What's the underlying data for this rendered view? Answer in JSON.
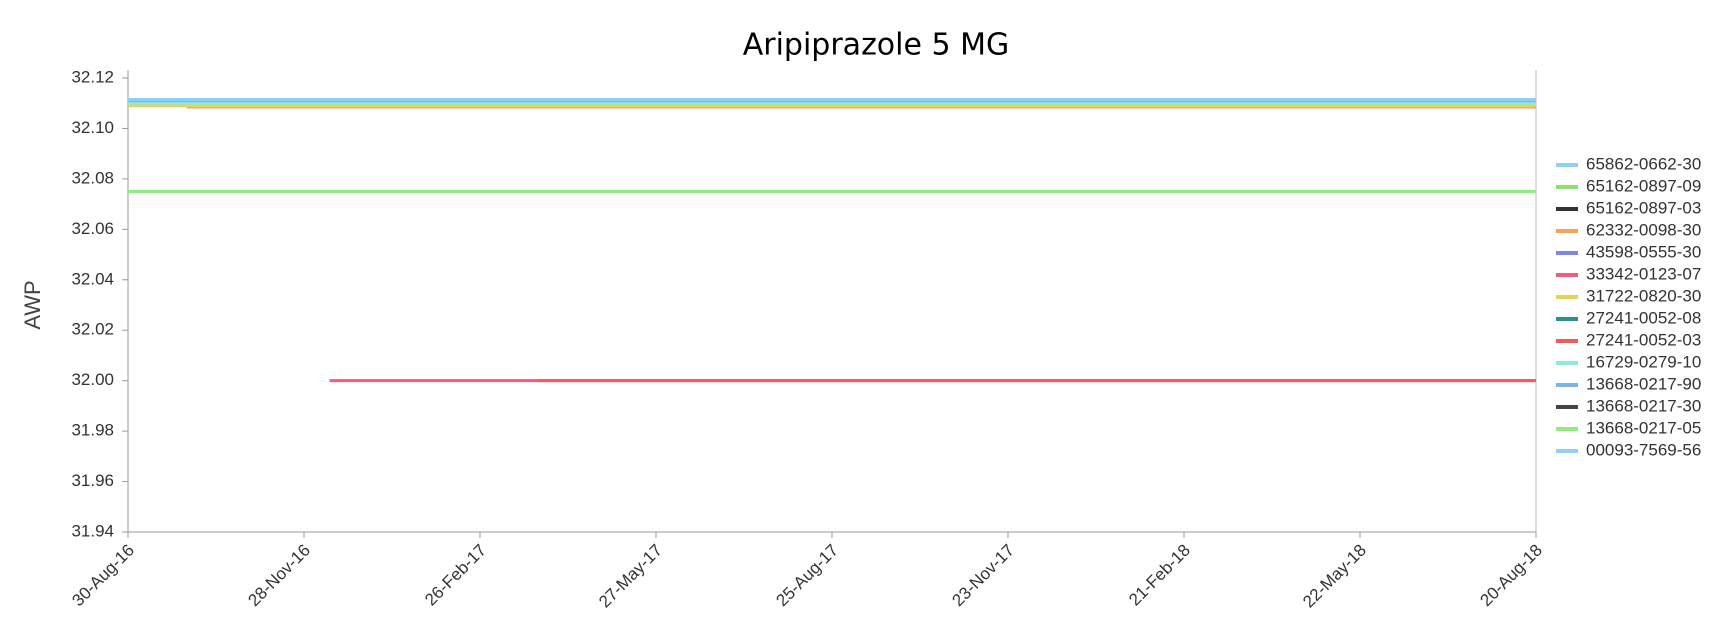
{
  "chart_data": {
    "type": "line",
    "title": "Aripiprazole 5 MG",
    "y_label": "AWP",
    "xlim": [
      "30-Aug-16",
      "20-Aug-18"
    ],
    "xticks": [
      "30-Aug-16",
      "28-Nov-16",
      "26-Feb-17",
      "27-May-17",
      "25-Aug-17",
      "23-Nov-17",
      "21-Feb-18",
      "22-May-18",
      "20-Aug-18"
    ],
    "ylim": [
      31.94,
      32.12
    ],
    "yticks": [
      {
        "value": 31.94,
        "label": "31.94"
      },
      31.96,
      31.98,
      {
        "value": 32,
        "label": "32.00"
      },
      32.02,
      32.04,
      32.06,
      32.08,
      {
        "value": 32.1,
        "label": "32.10"
      },
      32.12
    ],
    "legend": "right",
    "series": [
      {
        "name": "65862-0662-30",
        "color": "#8ecff5",
        "x": [
          "30-Aug-16",
          "20-Aug-18"
        ],
        "values": [
          32.111,
          32.111
        ]
      },
      {
        "name": "65162-0897-09",
        "color": "#90e070",
        "x": [
          "30-Aug-16",
          "20-Aug-18"
        ],
        "values": [
          32.075,
          32.075
        ]
      },
      {
        "name": "65162-0897-03",
        "color": "#333333",
        "x": [
          "30-Aug-16",
          "20-Aug-18"
        ],
        "values": [
          32.075,
          32.075
        ]
      },
      {
        "name": "62332-0098-30",
        "color": "#f7a35c",
        "x": [
          "29-Sep-16",
          "20-Aug-18"
        ],
        "values": [
          32.1085,
          32.1085
        ]
      },
      {
        "name": "43598-0555-30",
        "color": "#8085e9",
        "x": [
          "30-Aug-16",
          "20-Aug-18"
        ],
        "values": [
          32.075,
          32.075
        ]
      },
      {
        "name": "33342-0123-07",
        "color": "#f15c80",
        "x": [
          "11-Dec-16",
          "20-Aug-18"
        ],
        "values": [
          32,
          32
        ]
      },
      {
        "name": "31722-0820-30",
        "color": "#e4d354",
        "x": [
          "30-Aug-16",
          "20-Aug-18"
        ],
        "values": [
          32.109,
          32.109
        ]
      },
      {
        "name": "27241-0052-08",
        "color": "#2b908f",
        "x": [
          "30-Aug-16",
          "20-Aug-18"
        ],
        "values": [
          32.075,
          32.075
        ]
      },
      {
        "name": "27241-0052-03",
        "color": "#f45b5b",
        "x": [
          "27-Mar-17",
          "20-Aug-18"
        ],
        "values": [
          32,
          32
        ]
      },
      {
        "name": "16729-0279-10",
        "color": "#91e8e1",
        "x": [
          "30-Aug-16",
          "20-Aug-18"
        ],
        "values": [
          32.11,
          32.11
        ]
      },
      {
        "name": "13668-0217-90",
        "color": "#7cb5ec",
        "x": [
          "30-Aug-16",
          "20-Aug-18"
        ],
        "values": [
          32.111,
          32.111
        ]
      },
      {
        "name": "13668-0217-30",
        "color": "#434348",
        "x": [
          "30-Aug-16",
          "20-Aug-18"
        ],
        "values": [
          32.075,
          32.075
        ]
      },
      {
        "name": "13668-0217-05",
        "color": "#90ed7d",
        "x": [
          "30-Aug-16",
          "20-Aug-18"
        ],
        "values": [
          32.075,
          32.075
        ]
      },
      {
        "name": "00093-7569-56",
        "color": "#8ecff5",
        "x": [
          "30-Aug-16",
          "20-Aug-18"
        ],
        "values": [
          32.1115,
          32.1115
        ]
      }
    ]
  }
}
